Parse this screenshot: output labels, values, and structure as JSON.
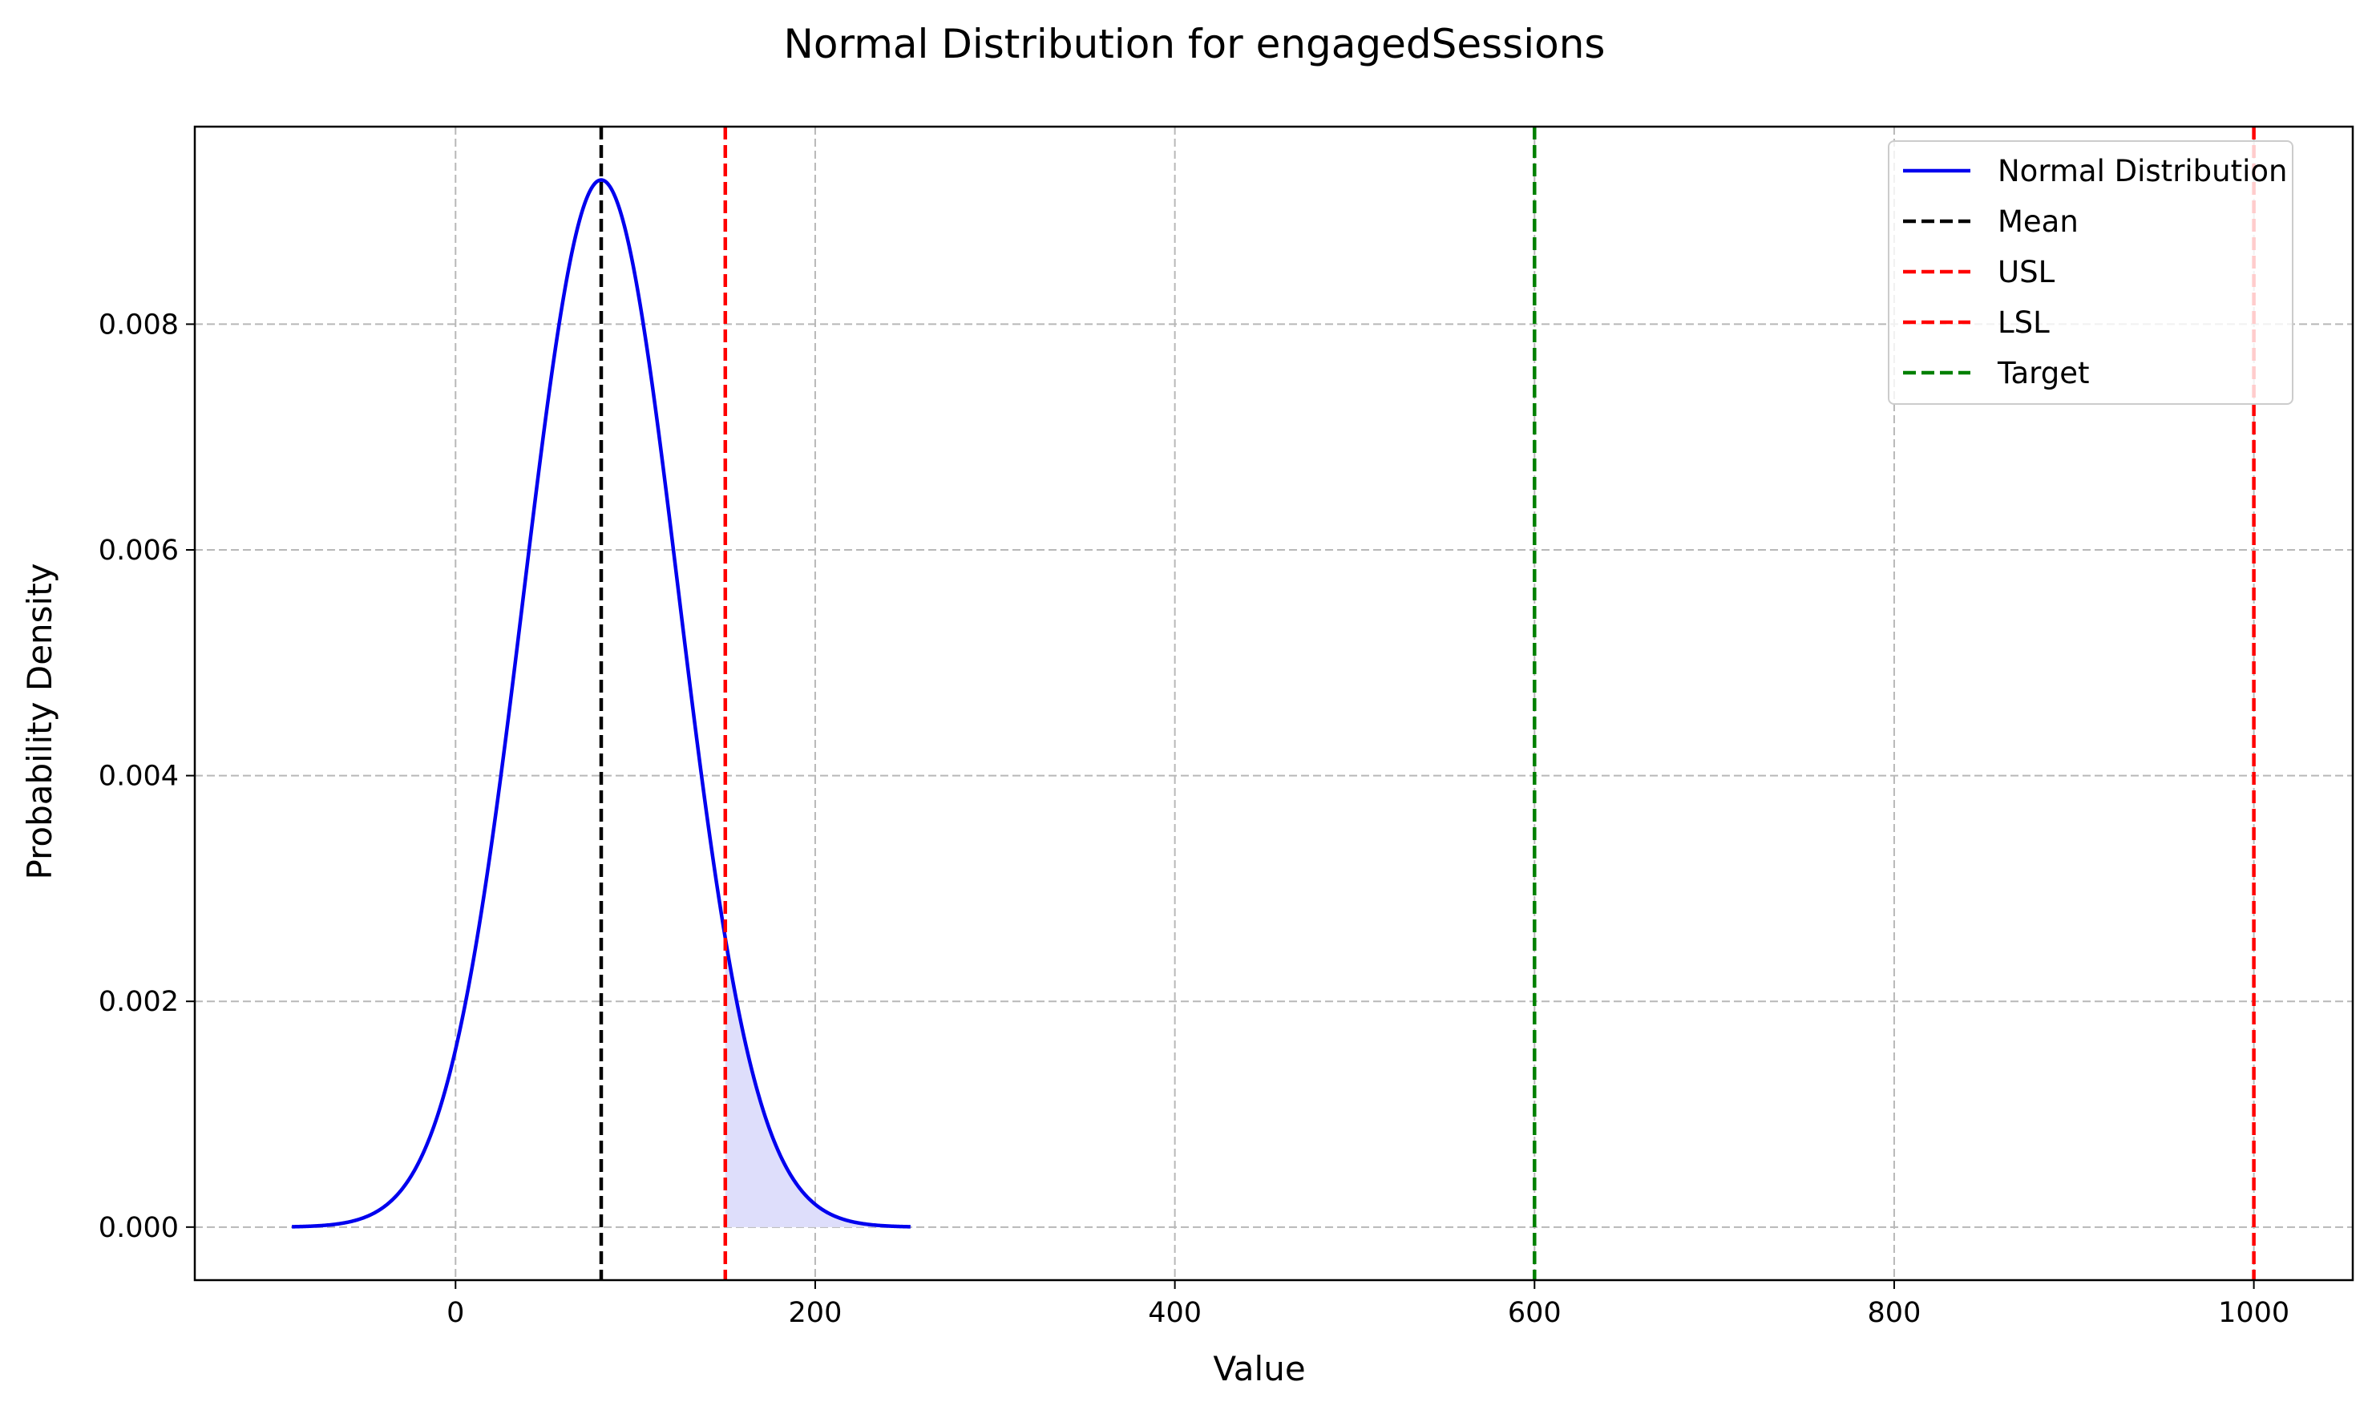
{
  "chart_data": {
    "type": "line",
    "title": "Normal Distribution for engagedSessions",
    "xlabel": "Value",
    "ylabel": "Probability Density",
    "xlim": [
      -145,
      1055
    ],
    "ylim": [
      -0.00047,
      0.00975
    ],
    "grid": true,
    "legend_position": "top-right",
    "x_ticks": [
      0,
      200,
      400,
      600,
      800,
      1000
    ],
    "y_ticks": [
      0.0,
      0.002,
      0.004,
      0.006,
      0.008
    ],
    "x_tick_labels": [
      "0",
      "200",
      "400",
      "600",
      "800",
      "1000"
    ],
    "y_tick_labels": [
      "0.000",
      "0.002",
      "0.004",
      "0.006",
      "0.008"
    ],
    "distribution": {
      "name": "Normal Distribution",
      "mean": 81,
      "std": 43,
      "x_range": [
        -91,
        253
      ],
      "color": "#0000ee",
      "shade_from": 150,
      "shade_color": "#dedefb"
    },
    "reference_lines": [
      {
        "name": "Mean",
        "x": 81,
        "color": "#000000"
      },
      {
        "name": "USL",
        "x": 150,
        "color": "#ff0000"
      },
      {
        "name": "LSL",
        "x": 1000,
        "color": "#ff0000"
      },
      {
        "name": "Target",
        "x": 600,
        "color": "#008000"
      }
    ],
    "legend": [
      {
        "label": "Normal Distribution",
        "color": "#0000ee",
        "style": "solid"
      },
      {
        "label": "Mean",
        "color": "#000000",
        "style": "dashed"
      },
      {
        "label": "USL",
        "color": "#ff0000",
        "style": "dashed"
      },
      {
        "label": "LSL",
        "color": "#ff0000",
        "style": "dashed"
      },
      {
        "label": "Target",
        "color": "#008000",
        "style": "dashed"
      }
    ]
  }
}
